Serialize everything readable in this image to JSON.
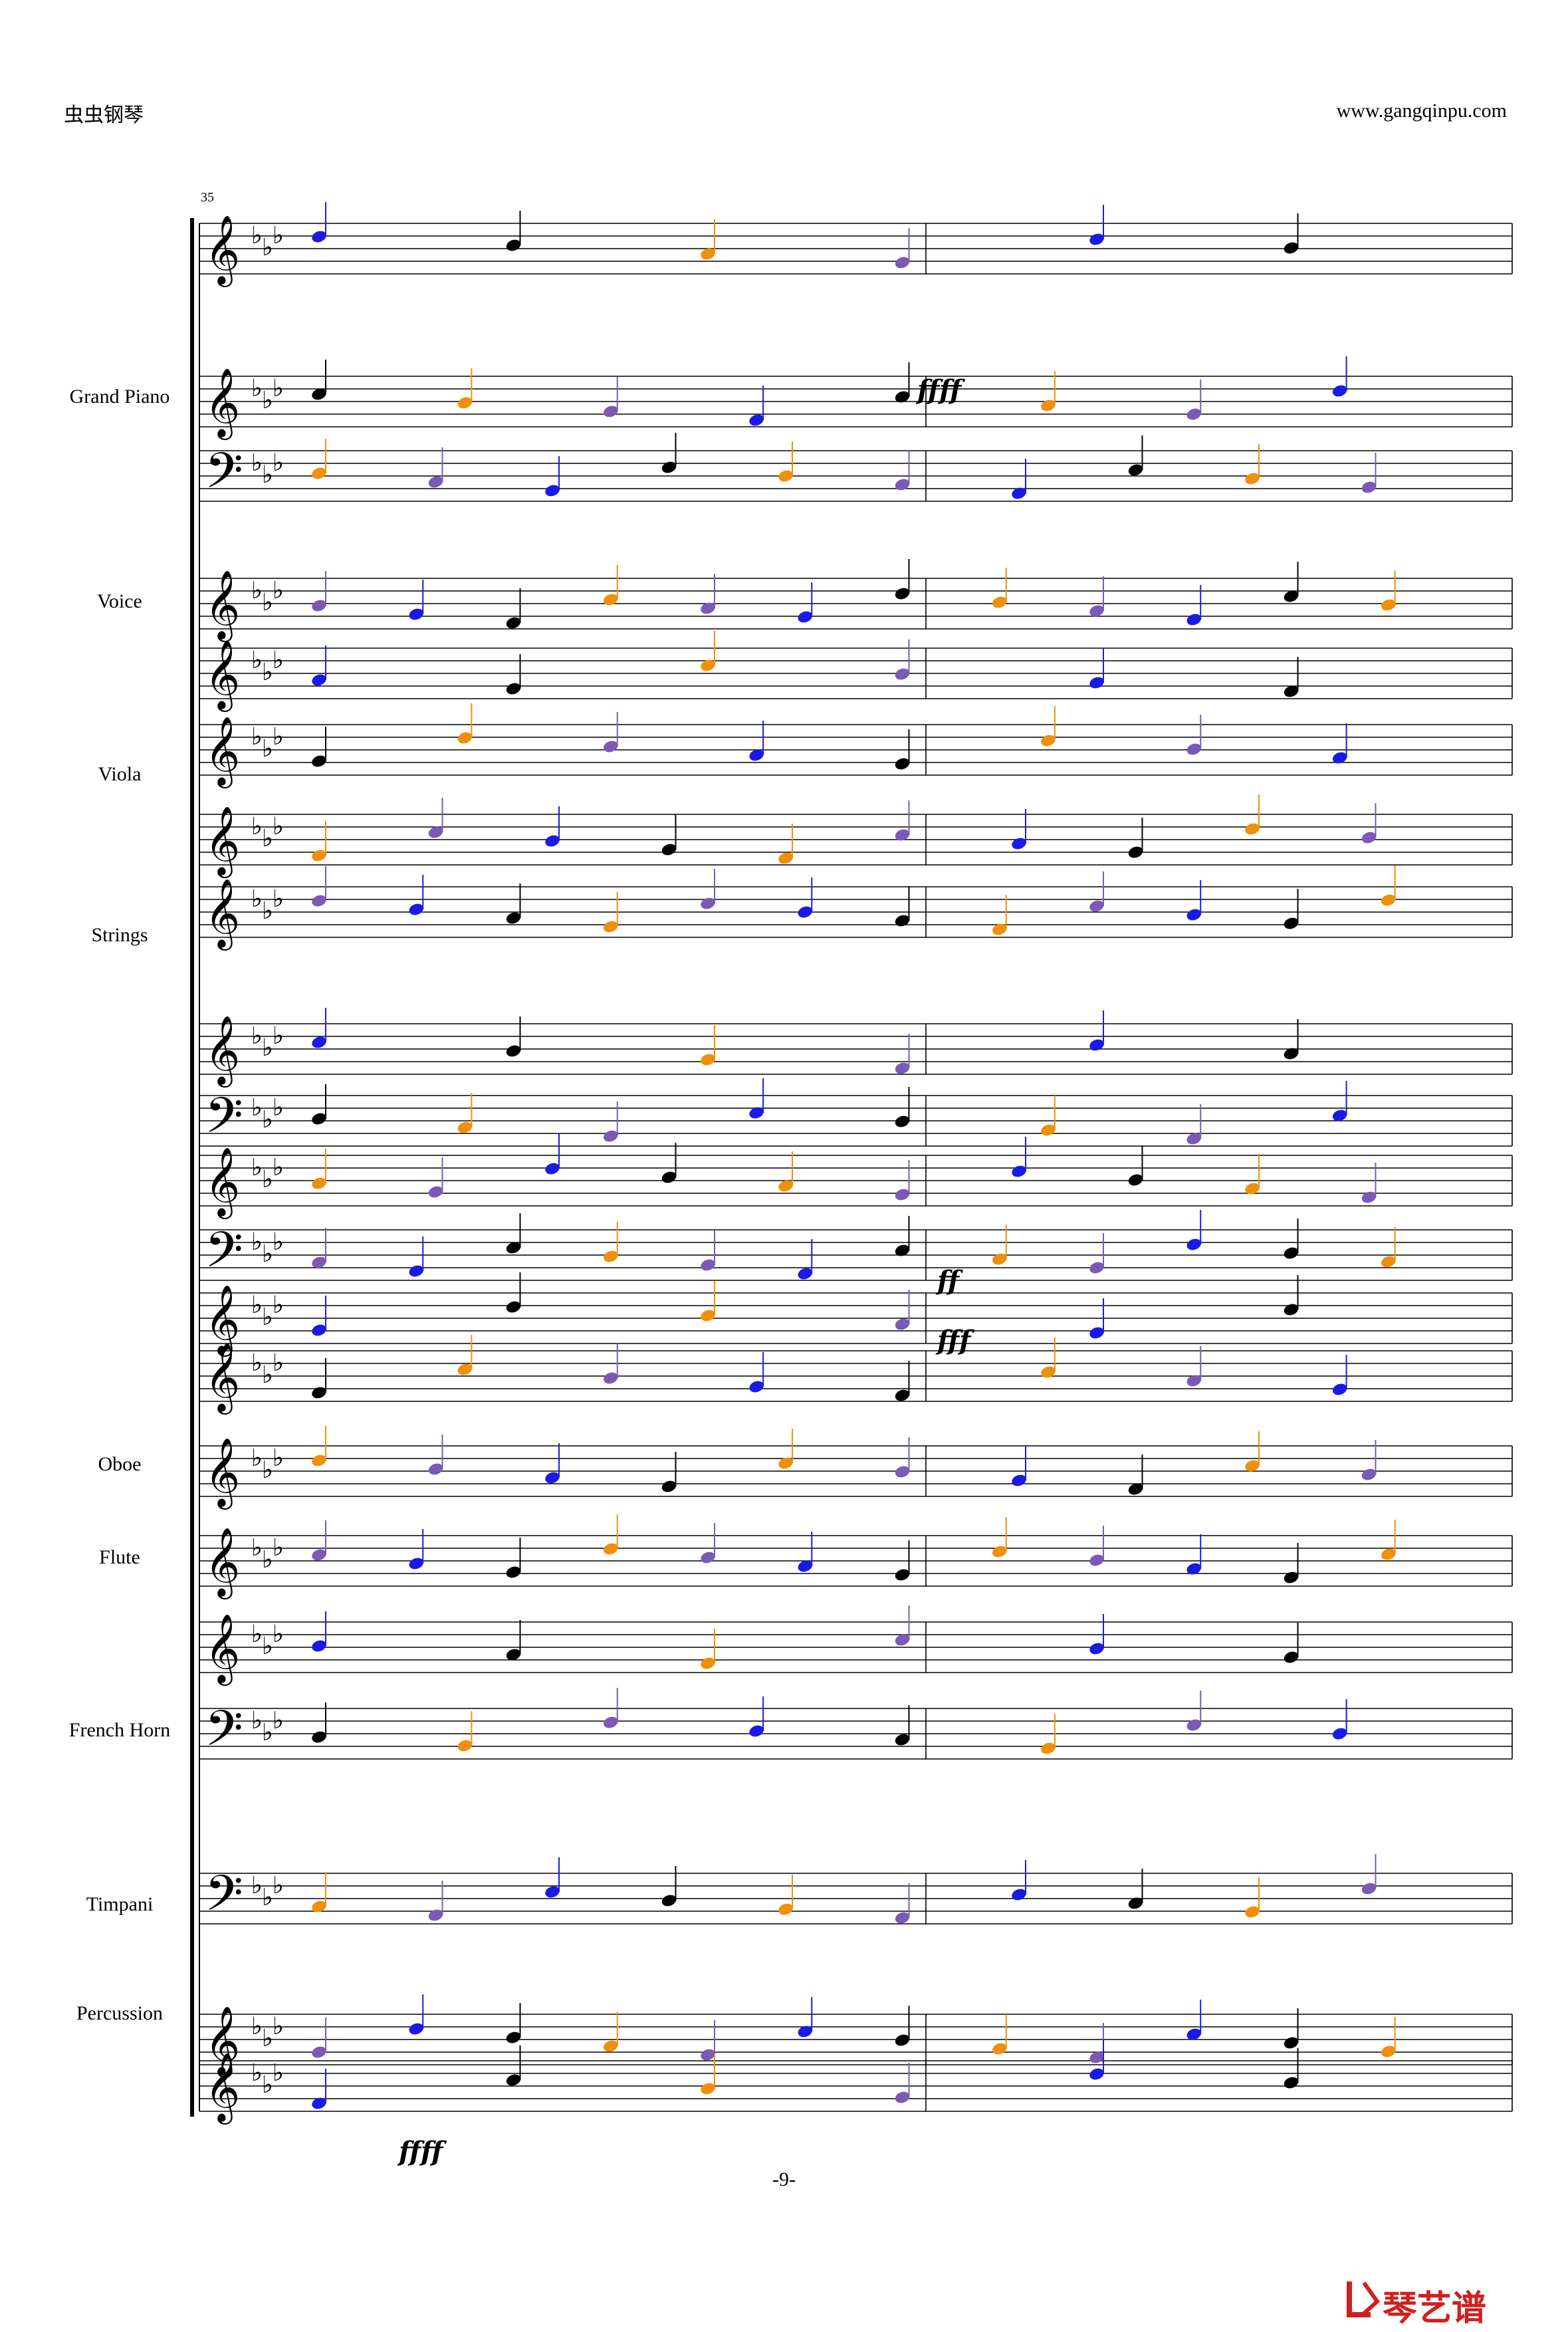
{
  "header": {
    "left_title": "虫虫钢琴",
    "right_url": "www.gangqinpu.com"
  },
  "score": {
    "measure_number": "35",
    "instruments": [
      "Grand Piano",
      "Voice",
      "Viola",
      "Strings",
      "Oboe",
      "Flute",
      "French Horn",
      "Timpani",
      "Percussion"
    ],
    "dynamics": [
      "ffff",
      "ff",
      "fff",
      "ffff"
    ],
    "key_signature": "E-flat major (3 flats)",
    "measures_shown": 2,
    "note_colors": {
      "blue": "#1a1ae6",
      "orange": "#f0900a",
      "purple": "#7b5ab6",
      "black": "#000000"
    }
  },
  "footer": {
    "page_number": "-9-",
    "logo_text": "琴艺谱",
    "logo_color": "#d01f1f"
  }
}
